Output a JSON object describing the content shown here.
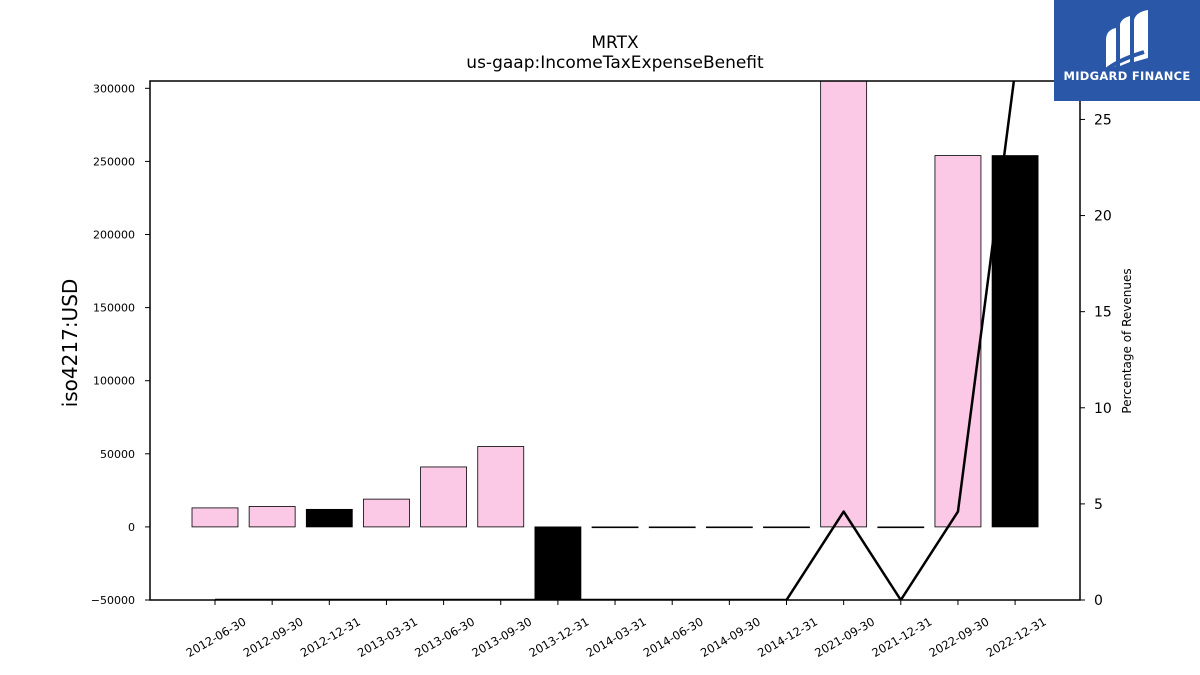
{
  "brand": {
    "name": "MIDGARD FINANCE",
    "bg_color": "#2a57a8"
  },
  "chart_data": {
    "type": "bar",
    "title": "MRTX",
    "subtitle": "us-gaap:IncomeTaxExpenseBenefit",
    "ylabel": "iso4217:USD",
    "y2label": "Percentage of Revenues",
    "ylim": [
      -50000,
      305000
    ],
    "y2lim": [
      0,
      27
    ],
    "yticks": [
      -50000,
      0,
      50000,
      100000,
      150000,
      200000,
      250000,
      300000
    ],
    "yticklabels": [
      "−50000",
      "0",
      "50000",
      "100000",
      "150000",
      "200000",
      "250000",
      "300000"
    ],
    "y2ticks": [
      0,
      5,
      10,
      15,
      20,
      25
    ],
    "y2ticklabels": [
      "0",
      "5",
      "10",
      "15",
      "20",
      "25"
    ],
    "categories": [
      "2012-06-30",
      "2012-09-30",
      "2012-12-31",
      "2013-03-31",
      "2013-06-30",
      "2013-09-30",
      "2013-12-31",
      "2014-03-31",
      "2014-06-30",
      "2014-09-30",
      "2014-12-31",
      "2021-09-30",
      "2021-12-31",
      "2022-09-30",
      "2022-12-31"
    ],
    "series": [
      {
        "values": [
          13000,
          14000,
          12000,
          19000,
          41000,
          55000,
          -50000,
          0,
          0,
          0,
          0,
          305000,
          0,
          254000,
          254000
        ],
        "colors": [
          "#fbc9e5",
          "#fbc9e5",
          "#000000",
          "#fbc9e5",
          "#fbc9e5",
          "#fbc9e5",
          "#000000",
          "#fbc9e5",
          "#fbc9e5",
          "#fbc9e5",
          "#fbc9e5",
          "#fbc9e5",
          "#fbc9e5",
          "#fbc9e5",
          "#000000"
        ]
      },
      {
        "type": "line",
        "axis": "right",
        "color": "#000000",
        "values": [
          0,
          0,
          0,
          0,
          0,
          0,
          0,
          0,
          0,
          0,
          0,
          4.6,
          0,
          4.6,
          27.5
        ]
      }
    ],
    "grid": false,
    "legend": "none"
  }
}
